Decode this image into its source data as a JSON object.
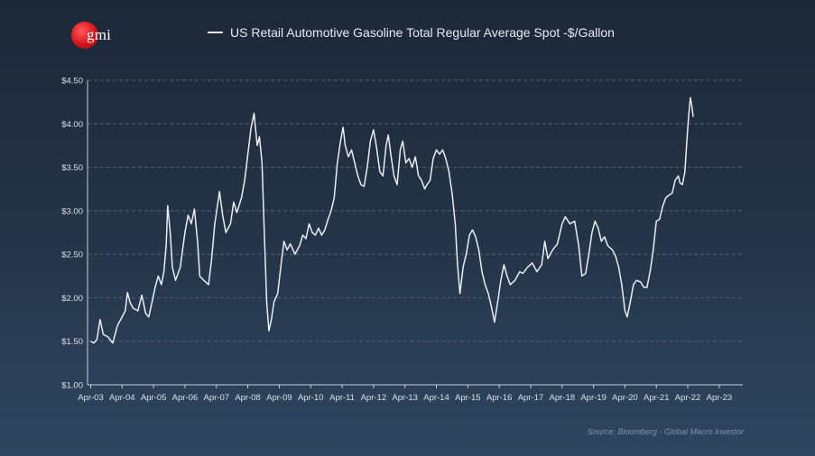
{
  "logo": {
    "text": "gmi"
  },
  "source": "Source: Bloomberg - Global Macro Investor",
  "chart_data": {
    "type": "line",
    "title": "",
    "xlabel": "",
    "ylabel": "",
    "series": [
      {
        "name": "US Retail Automotive Gasoline Total Regular Average Spot -$/Gallon",
        "color": "#e8edf3",
        "points": [
          [
            2003.25,
            1.5
          ],
          [
            2003.35,
            1.48
          ],
          [
            2003.45,
            1.52
          ],
          [
            2003.55,
            1.75
          ],
          [
            2003.65,
            1.58
          ],
          [
            2003.8,
            1.55
          ],
          [
            2003.95,
            1.48
          ],
          [
            2004.1,
            1.68
          ],
          [
            2004.25,
            1.78
          ],
          [
            2004.35,
            1.85
          ],
          [
            2004.42,
            2.06
          ],
          [
            2004.5,
            1.95
          ],
          [
            2004.6,
            1.88
          ],
          [
            2004.75,
            1.85
          ],
          [
            2004.88,
            2.03
          ],
          [
            2005.0,
            1.82
          ],
          [
            2005.1,
            1.78
          ],
          [
            2005.2,
            1.95
          ],
          [
            2005.3,
            2.12
          ],
          [
            2005.4,
            2.25
          ],
          [
            2005.5,
            2.15
          ],
          [
            2005.58,
            2.3
          ],
          [
            2005.65,
            2.6
          ],
          [
            2005.7,
            3.06
          ],
          [
            2005.78,
            2.75
          ],
          [
            2005.85,
            2.35
          ],
          [
            2005.95,
            2.2
          ],
          [
            2006.1,
            2.35
          ],
          [
            2006.25,
            2.75
          ],
          [
            2006.35,
            2.95
          ],
          [
            2006.45,
            2.85
          ],
          [
            2006.55,
            3.02
          ],
          [
            2006.65,
            2.65
          ],
          [
            2006.72,
            2.25
          ],
          [
            2006.85,
            2.2
          ],
          [
            2007.0,
            2.15
          ],
          [
            2007.1,
            2.45
          ],
          [
            2007.2,
            2.85
          ],
          [
            2007.35,
            3.22
          ],
          [
            2007.45,
            2.95
          ],
          [
            2007.55,
            2.75
          ],
          [
            2007.7,
            2.85
          ],
          [
            2007.8,
            3.1
          ],
          [
            2007.9,
            2.98
          ],
          [
            2008.05,
            3.15
          ],
          [
            2008.15,
            3.35
          ],
          [
            2008.25,
            3.65
          ],
          [
            2008.35,
            3.95
          ],
          [
            2008.45,
            4.12
          ],
          [
            2008.55,
            3.75
          ],
          [
            2008.62,
            3.85
          ],
          [
            2008.7,
            3.55
          ],
          [
            2008.78,
            2.7
          ],
          [
            2008.85,
            1.95
          ],
          [
            2008.92,
            1.62
          ],
          [
            2009.0,
            1.75
          ],
          [
            2009.08,
            1.95
          ],
          [
            2009.2,
            2.05
          ],
          [
            2009.3,
            2.35
          ],
          [
            2009.4,
            2.65
          ],
          [
            2009.5,
            2.55
          ],
          [
            2009.6,
            2.62
          ],
          [
            2009.75,
            2.5
          ],
          [
            2009.9,
            2.6
          ],
          [
            2010.0,
            2.72
          ],
          [
            2010.1,
            2.68
          ],
          [
            2010.2,
            2.85
          ],
          [
            2010.3,
            2.75
          ],
          [
            2010.4,
            2.72
          ],
          [
            2010.5,
            2.8
          ],
          [
            2010.6,
            2.72
          ],
          [
            2010.7,
            2.78
          ],
          [
            2010.8,
            2.9
          ],
          [
            2010.9,
            3.0
          ],
          [
            2011.0,
            3.15
          ],
          [
            2011.1,
            3.55
          ],
          [
            2011.2,
            3.8
          ],
          [
            2011.28,
            3.96
          ],
          [
            2011.35,
            3.75
          ],
          [
            2011.45,
            3.62
          ],
          [
            2011.55,
            3.7
          ],
          [
            2011.65,
            3.55
          ],
          [
            2011.75,
            3.4
          ],
          [
            2011.85,
            3.3
          ],
          [
            2011.95,
            3.28
          ],
          [
            2012.05,
            3.5
          ],
          [
            2012.15,
            3.8
          ],
          [
            2012.25,
            3.93
          ],
          [
            2012.35,
            3.72
          ],
          [
            2012.45,
            3.45
          ],
          [
            2012.55,
            3.4
          ],
          [
            2012.65,
            3.75
          ],
          [
            2012.72,
            3.87
          ],
          [
            2012.8,
            3.65
          ],
          [
            2012.9,
            3.4
          ],
          [
            2013.0,
            3.3
          ],
          [
            2013.1,
            3.7
          ],
          [
            2013.18,
            3.8
          ],
          [
            2013.28,
            3.55
          ],
          [
            2013.38,
            3.6
          ],
          [
            2013.48,
            3.5
          ],
          [
            2013.58,
            3.62
          ],
          [
            2013.68,
            3.4
          ],
          [
            2013.78,
            3.35
          ],
          [
            2013.88,
            3.25
          ],
          [
            2013.95,
            3.3
          ],
          [
            2014.05,
            3.35
          ],
          [
            2014.15,
            3.6
          ],
          [
            2014.25,
            3.7
          ],
          [
            2014.35,
            3.65
          ],
          [
            2014.45,
            3.7
          ],
          [
            2014.55,
            3.6
          ],
          [
            2014.65,
            3.45
          ],
          [
            2014.75,
            3.2
          ],
          [
            2014.85,
            2.85
          ],
          [
            2014.92,
            2.4
          ],
          [
            2015.0,
            2.05
          ],
          [
            2015.1,
            2.35
          ],
          [
            2015.2,
            2.5
          ],
          [
            2015.3,
            2.72
          ],
          [
            2015.4,
            2.78
          ],
          [
            2015.5,
            2.7
          ],
          [
            2015.6,
            2.55
          ],
          [
            2015.7,
            2.3
          ],
          [
            2015.8,
            2.15
          ],
          [
            2015.9,
            2.05
          ],
          [
            2016.0,
            1.9
          ],
          [
            2016.1,
            1.72
          ],
          [
            2016.2,
            1.95
          ],
          [
            2016.3,
            2.2
          ],
          [
            2016.4,
            2.38
          ],
          [
            2016.5,
            2.25
          ],
          [
            2016.6,
            2.15
          ],
          [
            2016.75,
            2.2
          ],
          [
            2016.9,
            2.3
          ],
          [
            2017.0,
            2.28
          ],
          [
            2017.15,
            2.35
          ],
          [
            2017.3,
            2.4
          ],
          [
            2017.45,
            2.3
          ],
          [
            2017.6,
            2.38
          ],
          [
            2017.7,
            2.65
          ],
          [
            2017.8,
            2.45
          ],
          [
            2017.95,
            2.55
          ],
          [
            2018.1,
            2.62
          ],
          [
            2018.25,
            2.85
          ],
          [
            2018.35,
            2.93
          ],
          [
            2018.5,
            2.85
          ],
          [
            2018.65,
            2.88
          ],
          [
            2018.78,
            2.6
          ],
          [
            2018.88,
            2.25
          ],
          [
            2019.0,
            2.28
          ],
          [
            2019.1,
            2.5
          ],
          [
            2019.2,
            2.75
          ],
          [
            2019.3,
            2.88
          ],
          [
            2019.4,
            2.8
          ],
          [
            2019.5,
            2.65
          ],
          [
            2019.6,
            2.7
          ],
          [
            2019.7,
            2.6
          ],
          [
            2019.85,
            2.55
          ],
          [
            2019.95,
            2.48
          ],
          [
            2020.05,
            2.35
          ],
          [
            2020.15,
            2.15
          ],
          [
            2020.25,
            1.85
          ],
          [
            2020.32,
            1.78
          ],
          [
            2020.42,
            1.95
          ],
          [
            2020.52,
            2.15
          ],
          [
            2020.62,
            2.2
          ],
          [
            2020.75,
            2.18
          ],
          [
            2020.85,
            2.12
          ],
          [
            2020.95,
            2.12
          ],
          [
            2021.05,
            2.3
          ],
          [
            2021.15,
            2.55
          ],
          [
            2021.25,
            2.88
          ],
          [
            2021.35,
            2.9
          ],
          [
            2021.45,
            3.05
          ],
          [
            2021.55,
            3.15
          ],
          [
            2021.65,
            3.18
          ],
          [
            2021.75,
            3.2
          ],
          [
            2021.85,
            3.35
          ],
          [
            2021.95,
            3.4
          ],
          [
            2022.0,
            3.32
          ],
          [
            2022.08,
            3.3
          ],
          [
            2022.16,
            3.45
          ],
          [
            2022.22,
            3.8
          ],
          [
            2022.28,
            4.1
          ],
          [
            2022.33,
            4.3
          ],
          [
            2022.38,
            4.2
          ],
          [
            2022.42,
            4.08
          ]
        ]
      }
    ],
    "x_ticks": [
      "Apr-03",
      "Apr-04",
      "Apr-05",
      "Apr-06",
      "Apr-07",
      "Apr-08",
      "Apr-09",
      "Apr-10",
      "Apr-11",
      "Apr-12",
      "Apr-13",
      "Apr-14",
      "Apr-15",
      "Apr-16",
      "Apr-17",
      "Apr-18",
      "Apr-19",
      "Apr-20",
      "Apr-21",
      "Apr-22",
      "Apr-23"
    ],
    "x_tick_values": [
      2003.25,
      2004.25,
      2005.25,
      2006.25,
      2007.25,
      2008.25,
      2009.25,
      2010.25,
      2011.25,
      2012.25,
      2013.25,
      2014.25,
      2015.25,
      2016.25,
      2017.25,
      2018.25,
      2019.25,
      2020.25,
      2021.25,
      2022.25,
      2023.25
    ],
    "xlim": [
      2003.15,
      2024.0
    ],
    "y_ticks": [
      "$1.00",
      "$1.50",
      "$2.00",
      "$2.50",
      "$3.00",
      "$3.50",
      "$4.00",
      "$4.50"
    ],
    "y_tick_values": [
      1.0,
      1.5,
      2.0,
      2.5,
      3.0,
      3.5,
      4.0,
      4.5
    ],
    "ylim": [
      1.0,
      4.5
    ],
    "grid": "horizontal dashed",
    "legend": "top-center",
    "colors": {
      "line": "#e8edf3",
      "axis": "#c7d0db",
      "grid": "#52627a",
      "tick_text": "#d9e0e8"
    }
  }
}
